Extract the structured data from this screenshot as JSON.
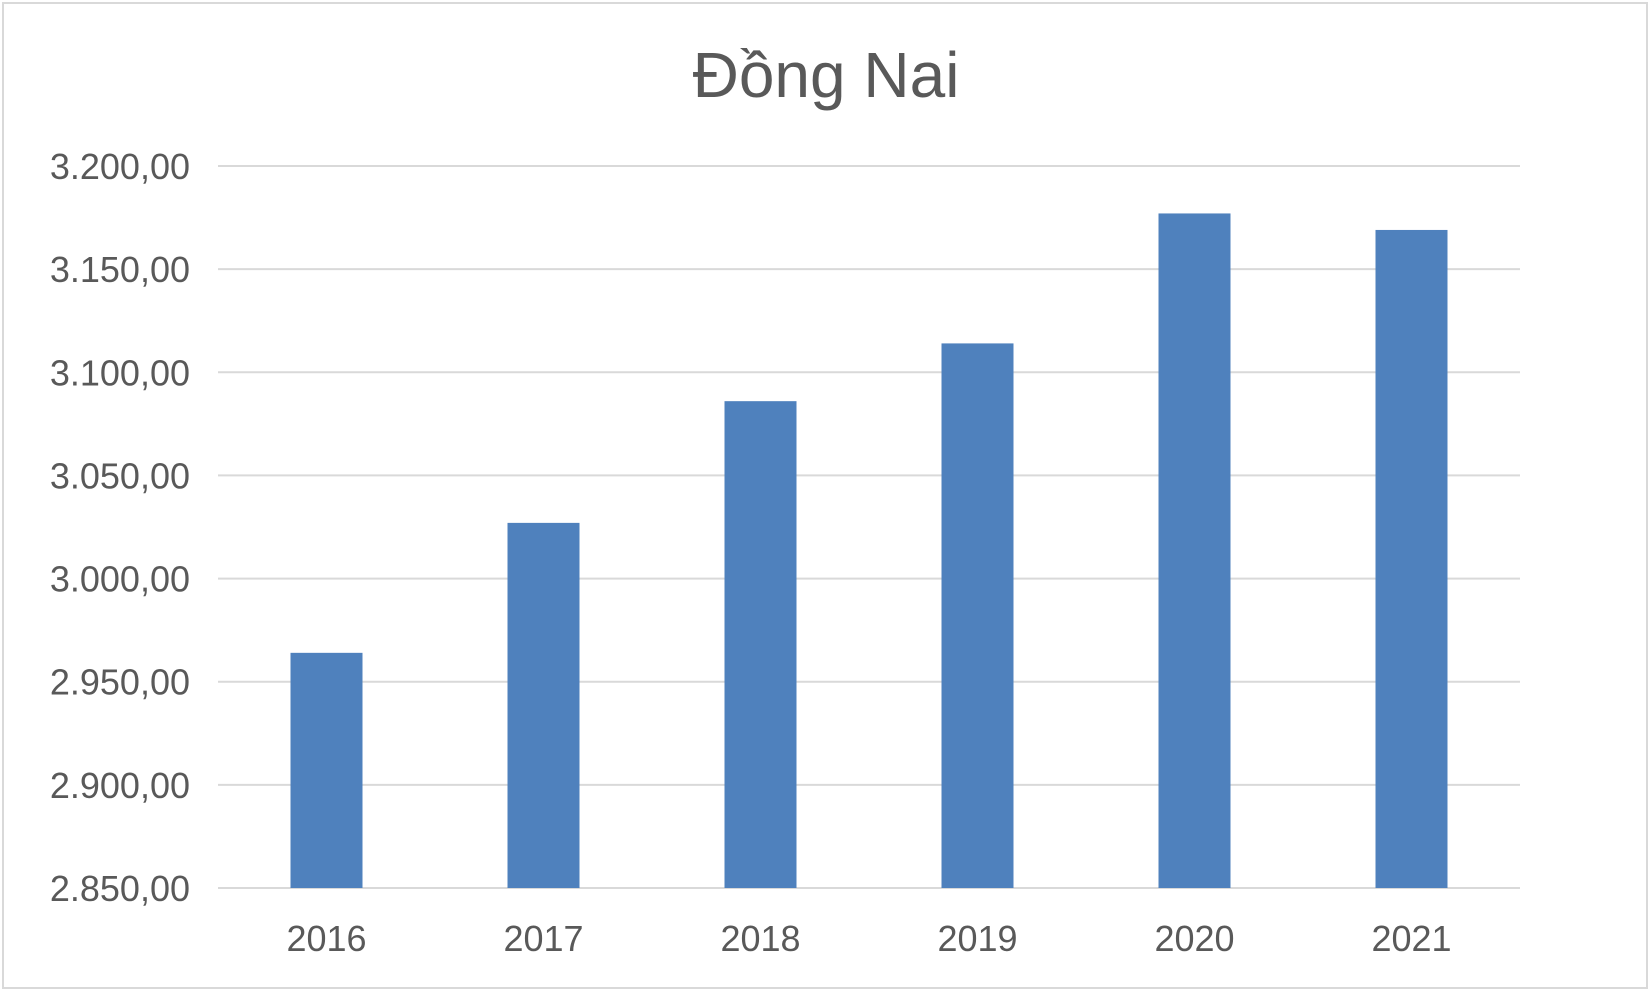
{
  "chart_data": {
    "type": "bar",
    "title": "Đồng Nai",
    "xlabel": "",
    "ylabel": "",
    "categories": [
      "2016",
      "2017",
      "2018",
      "2019",
      "2020",
      "2021"
    ],
    "values": [
      2964,
      3027,
      3086,
      3114,
      3177,
      3169
    ],
    "ylim": [
      2850,
      3200
    ],
    "yticks": [
      2850,
      2900,
      2950,
      3000,
      3050,
      3100,
      3150,
      3200
    ],
    "ytick_labels": [
      "2.850,00",
      "2.900,00",
      "2.950,00",
      "3.000,00",
      "3.050,00",
      "3.100,00",
      "3.150,00",
      "3.200,00"
    ],
    "grid": true,
    "legend": "none",
    "bar_color": "#4f81bd",
    "grid_color": "#d9d9d9"
  }
}
